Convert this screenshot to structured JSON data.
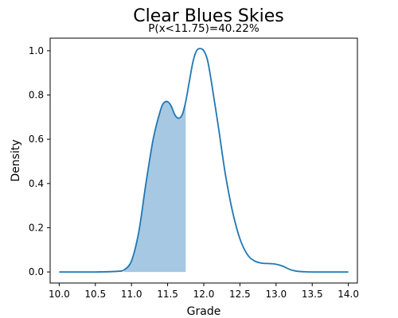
{
  "chart_data": {
    "type": "area",
    "title": "Clear Blues Skies",
    "subtitle": "P(x<11.75)=40.22%",
    "xlabel": "Grade",
    "ylabel": "Density",
    "xlim": [
      9.875,
      14.125
    ],
    "ylim": [
      -0.05,
      1.057
    ],
    "x_ticks": [
      "10.0",
      "10.5",
      "11.0",
      "11.5",
      "12.0",
      "12.5",
      "13.0",
      "13.5",
      "14.0"
    ],
    "y_ticks": [
      "0.0",
      "0.2",
      "0.4",
      "0.6",
      "0.8",
      "1.0"
    ],
    "grid": false,
    "shade_below_x": 11.75,
    "series": [
      {
        "x": [
          10.0,
          10.5,
          10.8,
          10.9,
          11.0,
          11.1,
          11.2,
          11.3,
          11.4,
          11.45,
          11.5,
          11.55,
          11.6,
          11.65,
          11.7,
          11.75,
          11.8,
          11.85,
          11.9,
          11.95,
          12.0,
          12.05,
          12.1,
          12.2,
          12.3,
          12.4,
          12.5,
          12.6,
          12.7,
          12.8,
          12.9,
          13.0,
          13.1,
          13.2,
          13.3,
          13.5,
          14.0
        ],
        "y": [
          0.0,
          0.0,
          0.003,
          0.01,
          0.05,
          0.18,
          0.4,
          0.6,
          0.73,
          0.765,
          0.77,
          0.75,
          0.71,
          0.695,
          0.71,
          0.77,
          0.86,
          0.95,
          1.0,
          1.01,
          1.0,
          0.96,
          0.87,
          0.66,
          0.44,
          0.27,
          0.15,
          0.08,
          0.05,
          0.04,
          0.038,
          0.035,
          0.025,
          0.01,
          0.003,
          0.0,
          0.0
        ]
      }
    ],
    "colors": {
      "line": "#1f77b4",
      "fill": "#a6c8e2"
    }
  }
}
